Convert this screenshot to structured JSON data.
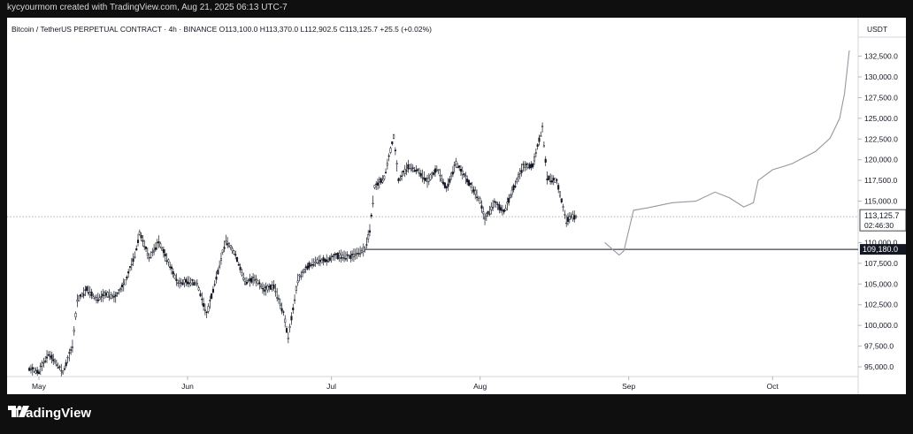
{
  "header": {
    "caption": "kycyourmom created with TradingView.com, Aug 21, 2025 06:13 UTC-7"
  },
  "legend": {
    "text": "Bitcoin / TetherUS PERPETUAL CONTRACT · 4h · BINANCE  O113,100.0  H113,370.0  L112,902.5  C113,125.7  +25.5 (+0.02%)"
  },
  "price_axis": {
    "unit": "USDT"
  },
  "footer": {
    "brand": "TradingView"
  },
  "colors": {
    "up": "#131722",
    "down": "#131722",
    "price_tag": "#131722",
    "grid": "#e0e3eb"
  },
  "chart_data": {
    "type": "line",
    "title": "Bitcoin / TetherUS PERPETUAL CONTRACT · 4h · BINANCE",
    "ylabel": "USDT",
    "ylim": [
      93000,
      135000
    ],
    "y_ticks": [
      "132,500.0",
      "130,000.0",
      "127,500.0",
      "125,000.0",
      "122,500.0",
      "120,000.0",
      "117,500.0",
      "115,000.0",
      "110,000.0",
      "107,500.0",
      "105,000.0",
      "102,500.0",
      "100,000.0",
      "97,500.0",
      "95,000.0"
    ],
    "x_ticks": [
      {
        "label": "May",
        "date": "2025-05-01"
      },
      {
        "label": "Jun",
        "date": "2025-06-01"
      },
      {
        "label": "Jul",
        "date": "2025-07-01"
      },
      {
        "label": "Aug",
        "date": "2025-08-01"
      },
      {
        "label": "Sep",
        "date": "2025-09-01"
      },
      {
        "label": "Oct",
        "date": "2025-10-01"
      }
    ],
    "last_price": {
      "value": "113,125.7",
      "countdown": "02:46:30"
    },
    "horizontal_line": {
      "value": 109180,
      "label": "109,180.0",
      "start": "2025-07-08"
    },
    "series": [
      {
        "kind": "price",
        "points": [
          [
            "2025-04-29",
            94800
          ],
          [
            "2025-05-01",
            94400
          ],
          [
            "2025-05-03",
            96600
          ],
          [
            "2025-05-05",
            95200
          ],
          [
            "2025-05-06",
            94300
          ],
          [
            "2025-05-08",
            97500
          ],
          [
            "2025-05-09",
            103000
          ],
          [
            "2025-05-11",
            104400
          ],
          [
            "2025-05-13",
            103200
          ],
          [
            "2025-05-15",
            103800
          ],
          [
            "2025-05-17",
            103400
          ],
          [
            "2025-05-19",
            105200
          ],
          [
            "2025-05-21",
            108500
          ],
          [
            "2025-05-22",
            111200
          ],
          [
            "2025-05-24",
            108200
          ],
          [
            "2025-05-26",
            110100
          ],
          [
            "2025-05-28",
            107600
          ],
          [
            "2025-05-30",
            105100
          ],
          [
            "2025-06-01",
            105300
          ],
          [
            "2025-06-03",
            105100
          ],
          [
            "2025-06-05",
            101300
          ],
          [
            "2025-06-07",
            105800
          ],
          [
            "2025-06-09",
            110300
          ],
          [
            "2025-06-11",
            108500
          ],
          [
            "2025-06-13",
            105300
          ],
          [
            "2025-06-15",
            105600
          ],
          [
            "2025-06-17",
            104300
          ],
          [
            "2025-06-19",
            104800
          ],
          [
            "2025-06-21",
            101500
          ],
          [
            "2025-06-22",
            98500
          ],
          [
            "2025-06-24",
            105500
          ],
          [
            "2025-06-26",
            107100
          ],
          [
            "2025-06-28",
            107800
          ],
          [
            "2025-06-30",
            107900
          ],
          [
            "2025-07-02",
            108400
          ],
          [
            "2025-07-05",
            108300
          ],
          [
            "2025-07-08",
            109200
          ],
          [
            "2025-07-09",
            111500
          ],
          [
            "2025-07-10",
            116700
          ],
          [
            "2025-07-12",
            117800
          ],
          [
            "2025-07-14",
            122800
          ],
          [
            "2025-07-15",
            117500
          ],
          [
            "2025-07-17",
            119200
          ],
          [
            "2025-07-19",
            118700
          ],
          [
            "2025-07-21",
            117400
          ],
          [
            "2025-07-23",
            118900
          ],
          [
            "2025-07-25",
            116500
          ],
          [
            "2025-07-27",
            119600
          ],
          [
            "2025-07-29",
            117800
          ],
          [
            "2025-08-01",
            115100
          ],
          [
            "2025-08-02",
            112800
          ],
          [
            "2025-08-04",
            114800
          ],
          [
            "2025-08-06",
            113700
          ],
          [
            "2025-08-08",
            116600
          ],
          [
            "2025-08-10",
            119200
          ],
          [
            "2025-08-12",
            119300
          ],
          [
            "2025-08-14",
            123900
          ],
          [
            "2025-08-15",
            117800
          ],
          [
            "2025-08-17",
            117400
          ],
          [
            "2025-08-19",
            112600
          ],
          [
            "2025-08-20",
            113200
          ],
          [
            "2025-08-21",
            113126
          ]
        ]
      },
      {
        "kind": "projection",
        "points": [
          [
            "2025-08-27",
            110000
          ],
          [
            "2025-08-30",
            108500
          ],
          [
            "2025-08-31",
            109000
          ],
          [
            "2025-09-02",
            113900
          ],
          [
            "2025-09-05",
            114200
          ],
          [
            "2025-09-10",
            114800
          ],
          [
            "2025-09-15",
            115000
          ],
          [
            "2025-09-19",
            116100
          ],
          [
            "2025-09-22",
            115400
          ],
          [
            "2025-09-25",
            114300
          ],
          [
            "2025-09-27",
            114800
          ],
          [
            "2025-09-28",
            117500
          ],
          [
            "2025-10-01",
            118800
          ],
          [
            "2025-10-05",
            119500
          ],
          [
            "2025-10-10",
            121000
          ],
          [
            "2025-10-13",
            122600
          ],
          [
            "2025-10-15",
            125000
          ],
          [
            "2025-10-16",
            128000
          ],
          [
            "2025-10-17",
            133200
          ]
        ]
      }
    ]
  }
}
